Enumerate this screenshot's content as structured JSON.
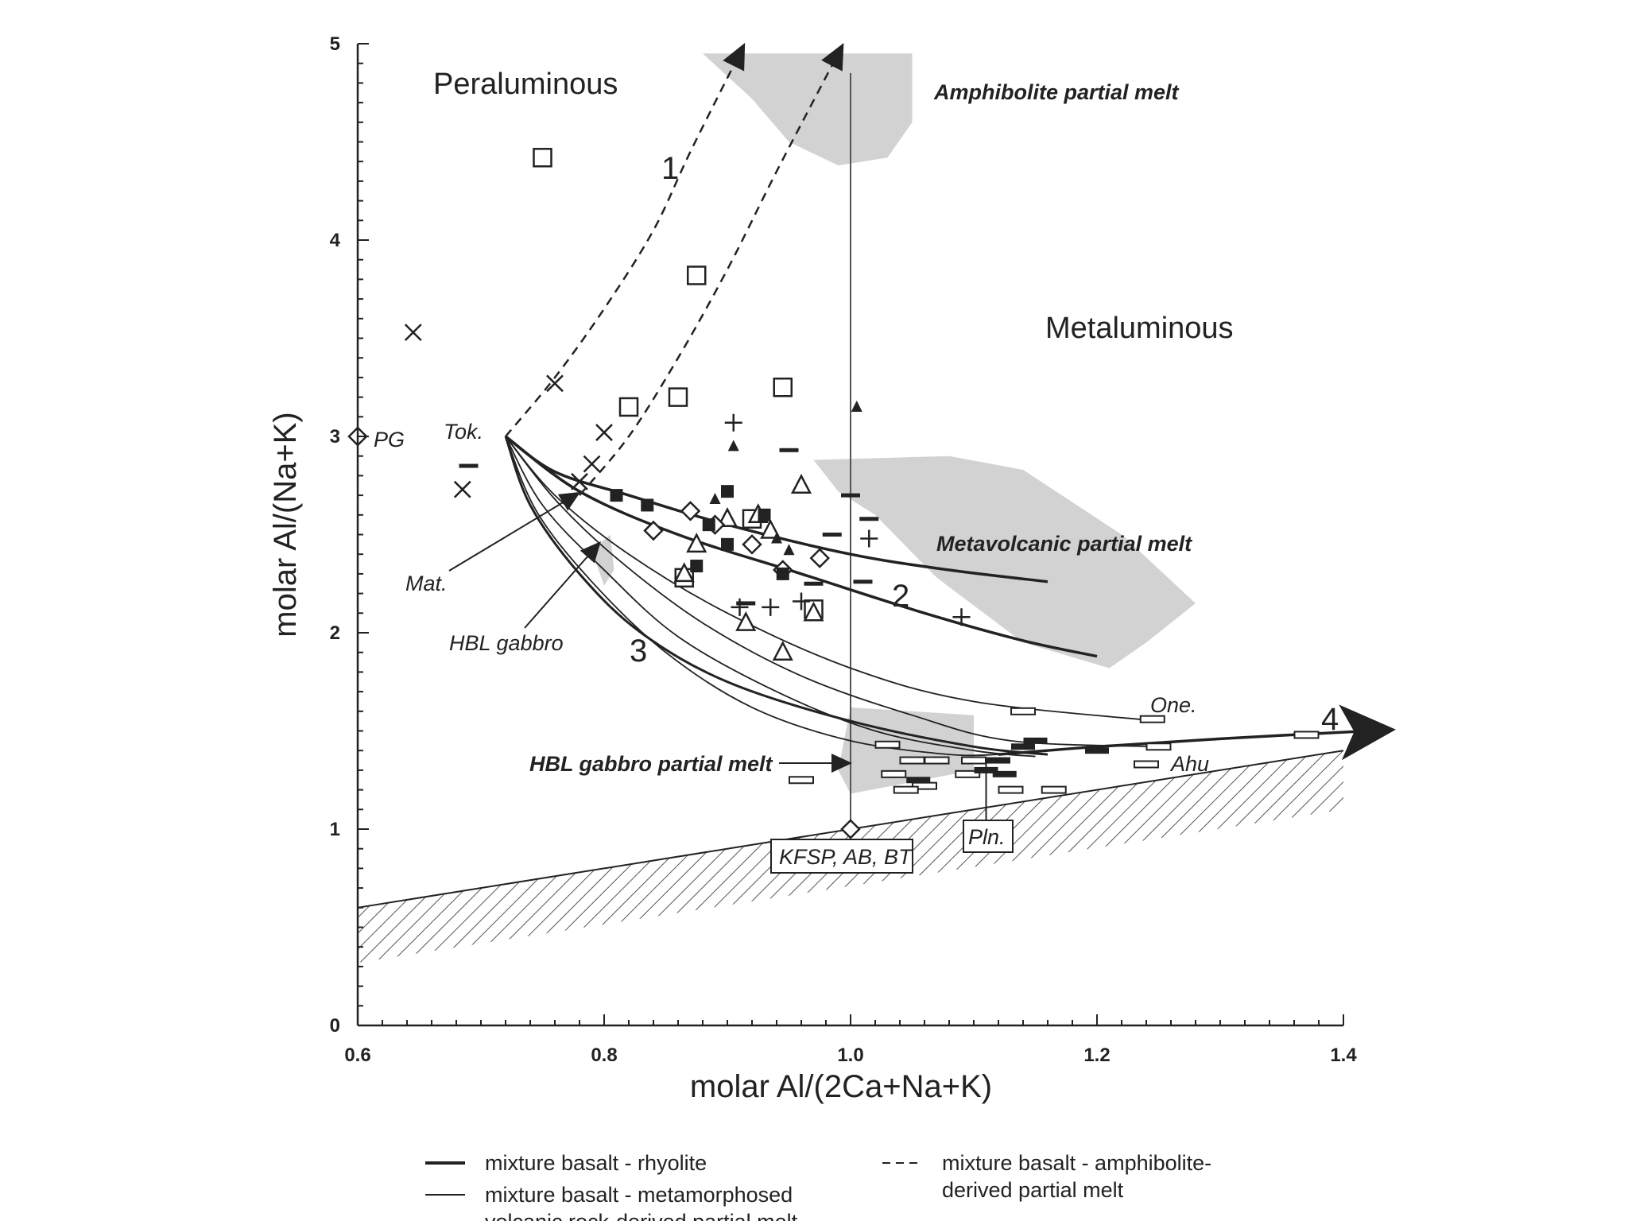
{
  "chart_data": {
    "type": "scatter",
    "title": "",
    "xlabel": "molar Al/(2Ca+Na+K)",
    "ylabel": "molar Al/(Na+K)",
    "xlim": [
      0.6,
      1.4
    ],
    "ylim": [
      0,
      5
    ],
    "x_ticks": [
      "0.6",
      "0.8",
      "1.0",
      "1.2",
      "1.4"
    ],
    "y_ticks": [
      "0",
      "1",
      "2",
      "3",
      "4",
      "5"
    ],
    "region_labels": {
      "peraluminous": "Peraluminous",
      "metaluminous": "Metaluminous"
    },
    "field_labels": {
      "amphibolite": "Amphibolite partial melt",
      "metavolcanic": "Metavolcanic partial melt",
      "hbl_gabbro_melt": "HBL gabbro partial melt"
    },
    "fields": {
      "amphibolite": [
        [
          0.88,
          4.95
        ],
        [
          1.05,
          4.95
        ],
        [
          1.05,
          4.6
        ],
        [
          1.03,
          4.42
        ],
        [
          0.99,
          4.38
        ],
        [
          0.95,
          4.5
        ],
        [
          0.92,
          4.72
        ]
      ],
      "metavolcanic": [
        [
          0.97,
          2.88
        ],
        [
          1.08,
          2.9
        ],
        [
          1.14,
          2.83
        ],
        [
          1.22,
          2.5
        ],
        [
          1.28,
          2.15
        ],
        [
          1.24,
          1.95
        ],
        [
          1.21,
          1.82
        ],
        [
          1.14,
          1.95
        ],
        [
          1.07,
          2.28
        ],
        [
          1.02,
          2.6
        ],
        [
          0.99,
          2.72
        ]
      ],
      "hbl_gabbro_melt": [
        [
          1.0,
          1.62
        ],
        [
          1.1,
          1.58
        ],
        [
          1.1,
          1.3
        ],
        [
          1.05,
          1.24
        ],
        [
          1.0,
          1.18
        ],
        [
          0.99,
          1.3
        ]
      ],
      "hbl_gabbro_small": [
        [
          0.79,
          2.42
        ],
        [
          0.805,
          2.5
        ],
        [
          0.808,
          2.32
        ],
        [
          0.8,
          2.24
        ]
      ]
    },
    "labels": {
      "pg": "PG",
      "tok": "Tok.",
      "mat": "Mat.",
      "hbl_gabbro": "HBL gabbro",
      "kfsp": "KFSP, AB, BT",
      "pln": "Pln.",
      "one": "One.",
      "ahu": "Ahu"
    },
    "curve_numbers": [
      "1",
      "2",
      "3",
      "4"
    ],
    "points": {
      "open_square": [
        [
          0.75,
          4.42
        ],
        [
          0.875,
          3.82
        ],
        [
          0.82,
          3.15
        ],
        [
          0.86,
          3.2
        ],
        [
          0.945,
          3.25
        ],
        [
          0.865,
          2.28
        ],
        [
          0.92,
          2.58
        ],
        [
          0.97,
          2.12
        ]
      ],
      "cross_x": [
        [
          0.645,
          3.53
        ],
        [
          0.685,
          2.73
        ],
        [
          0.76,
          3.27
        ],
        [
          0.8,
          3.02
        ],
        [
          0.79,
          2.86
        ],
        [
          0.78,
          2.77
        ]
      ],
      "plus": [
        [
          0.905,
          3.07
        ],
        [
          0.91,
          2.13
        ],
        [
          0.935,
          2.13
        ],
        [
          1.015,
          2.48
        ],
        [
          1.09,
          2.08
        ],
        [
          0.96,
          2.16
        ]
      ],
      "open_triangle": [
        [
          0.96,
          2.75
        ],
        [
          0.875,
          2.45
        ],
        [
          0.9,
          2.58
        ],
        [
          0.925,
          2.6
        ],
        [
          0.935,
          2.52
        ],
        [
          0.915,
          2.05
        ],
        [
          0.945,
          1.9
        ],
        [
          0.865,
          2.3
        ],
        [
          0.97,
          2.1
        ]
      ],
      "filled_triangle": [
        [
          0.905,
          2.95
        ],
        [
          0.89,
          2.68
        ],
        [
          0.94,
          2.48
        ],
        [
          1.005,
          3.15
        ],
        [
          0.95,
          2.42
        ]
      ],
      "open_diamond": [
        [
          0.84,
          2.52
        ],
        [
          0.87,
          2.62
        ],
        [
          0.89,
          2.55
        ],
        [
          0.92,
          2.45
        ],
        [
          0.945,
          2.32
        ],
        [
          0.975,
          2.38
        ]
      ],
      "filled_square": [
        [
          0.81,
          2.7
        ],
        [
          0.835,
          2.65
        ],
        [
          0.9,
          2.72
        ],
        [
          0.9,
          2.45
        ],
        [
          0.93,
          2.6
        ],
        [
          0.945,
          2.3
        ],
        [
          0.885,
          2.55
        ],
        [
          0.875,
          2.34
        ]
      ],
      "dash": [
        [
          0.69,
          2.85
        ],
        [
          0.95,
          2.93
        ],
        [
          1.0,
          2.7
        ],
        [
          0.985,
          2.5
        ],
        [
          1.015,
          2.58
        ],
        [
          0.97,
          2.25
        ],
        [
          1.01,
          2.26
        ],
        [
          0.915,
          2.15
        ]
      ],
      "open_bar": [
        [
          1.03,
          1.43
        ],
        [
          0.96,
          1.25
        ],
        [
          1.035,
          1.28
        ],
        [
          1.05,
          1.35
        ],
        [
          1.06,
          1.22
        ],
        [
          1.045,
          1.2
        ],
        [
          1.07,
          1.35
        ],
        [
          1.095,
          1.28
        ],
        [
          1.1,
          1.35
        ],
        [
          1.13,
          1.2
        ],
        [
          1.165,
          1.2
        ],
        [
          1.14,
          1.6
        ],
        [
          1.245,
          1.56
        ],
        [
          1.24,
          1.33
        ],
        [
          1.25,
          1.42
        ],
        [
          1.37,
          1.48
        ]
      ],
      "filled_bar": [
        [
          1.11,
          1.3
        ],
        [
          1.125,
          1.28
        ],
        [
          1.15,
          1.45
        ],
        [
          1.2,
          1.4
        ],
        [
          1.14,
          1.42
        ],
        [
          1.12,
          1.35
        ],
        [
          1.055,
          1.25
        ]
      ]
    },
    "curves": {
      "rhyolite_mixing": [
        [
          [
            0.72,
            3.0
          ],
          [
            0.76,
            2.82
          ],
          [
            0.82,
            2.7
          ],
          [
            0.9,
            2.55
          ],
          [
            1.0,
            2.4
          ],
          [
            1.08,
            2.32
          ],
          [
            1.16,
            2.26
          ]
        ],
        [
          [
            0.72,
            3.0
          ],
          [
            0.78,
            2.72
          ],
          [
            0.86,
            2.5
          ],
          [
            0.96,
            2.3
          ],
          [
            1.06,
            2.1
          ],
          [
            1.14,
            1.96
          ],
          [
            1.2,
            1.88
          ]
        ]
      ],
      "metavolcanic_mixing": [
        [
          [
            0.72,
            3.0
          ],
          [
            0.76,
            2.7
          ],
          [
            0.82,
            2.4
          ],
          [
            0.9,
            2.1
          ],
          [
            1.0,
            1.82
          ],
          [
            1.1,
            1.65
          ],
          [
            1.25,
            1.55
          ]
        ],
        [
          [
            0.72,
            3.0
          ],
          [
            0.76,
            2.68
          ],
          [
            0.81,
            2.38
          ],
          [
            0.88,
            2.05
          ],
          [
            0.96,
            1.78
          ],
          [
            1.05,
            1.58
          ],
          [
            1.13,
            1.45
          ],
          [
            1.25,
            1.42
          ]
        ],
        [
          [
            0.72,
            3.0
          ],
          [
            0.75,
            2.65
          ],
          [
            0.8,
            2.32
          ],
          [
            0.86,
            1.98
          ],
          [
            0.94,
            1.7
          ],
          [
            1.02,
            1.5
          ],
          [
            1.1,
            1.4
          ],
          [
            1.15,
            1.37
          ]
        ],
        [
          [
            0.72,
            3.0
          ],
          [
            0.745,
            2.62
          ],
          [
            0.79,
            2.26
          ],
          [
            0.85,
            1.9
          ],
          [
            0.92,
            1.62
          ],
          [
            1.0,
            1.45
          ],
          [
            1.08,
            1.38
          ],
          [
            1.12,
            1.38
          ]
        ]
      ],
      "basalt_mixing_3": [
        [
          0.72,
          3.0
        ],
        [
          0.74,
          2.65
        ],
        [
          0.78,
          2.3
        ],
        [
          0.83,
          2.0
        ],
        [
          0.9,
          1.75
        ],
        [
          1.0,
          1.55
        ],
        [
          1.1,
          1.42
        ],
        [
          1.16,
          1.38
        ]
      ],
      "amphibolite_mixing": [
        [
          [
            0.72,
            3.0
          ],
          [
            0.76,
            3.3
          ],
          [
            0.8,
            3.65
          ],
          [
            0.84,
            4.05
          ],
          [
            0.87,
            4.45
          ],
          [
            0.91,
            4.95
          ]
        ],
        [
          [
            0.78,
            2.7
          ],
          [
            0.82,
            3.0
          ],
          [
            0.86,
            3.4
          ],
          [
            0.9,
            3.85
          ],
          [
            0.94,
            4.35
          ],
          [
            0.99,
            4.95
          ]
        ]
      ],
      "trend_4": [
        [
          1.12,
          1.38
        ],
        [
          1.2,
          1.42
        ],
        [
          1.3,
          1.46
        ],
        [
          1.42,
          1.5
        ]
      ]
    },
    "legend": [
      {
        "style": "thick-solid",
        "label": "mixture basalt - rhyolite"
      },
      {
        "style": "thin-solid",
        "label": "mixture basalt - metamorphosed\nvolcanic rock-derived  partial melt"
      },
      {
        "style": "dashed",
        "label": "mixture basalt - amphibolite-\nderived partial melt"
      }
    ]
  }
}
